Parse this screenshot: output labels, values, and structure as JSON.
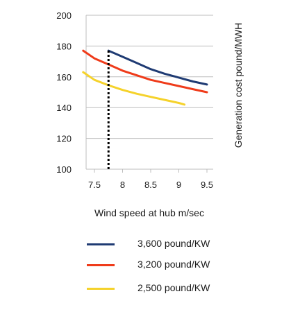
{
  "chart_data": {
    "type": "line",
    "title": "",
    "xlabel": "Wind speed at hub m/sec",
    "ylabel": "Generation cost pound/MWH",
    "xlim": [
      7.3,
      9.5
    ],
    "ylim": [
      100,
      200
    ],
    "xticks": [
      "7.5",
      "8",
      "8.5",
      "9",
      "9.5"
    ],
    "xtick_values": [
      7.5,
      8,
      8.5,
      9,
      9.5
    ],
    "yticks": [
      "100",
      "120",
      "140",
      "160",
      "180",
      "200"
    ],
    "ytick_values": [
      100,
      120,
      140,
      160,
      180,
      200
    ],
    "grid": "horizontal",
    "reference_line": {
      "x": 7.75,
      "style": "dotted",
      "color": "#000000"
    },
    "series": [
      {
        "name": "3,600 pound/KW",
        "color": "#1f3b73",
        "points": [
          [
            7.75,
            177
          ],
          [
            8,
            173
          ],
          [
            8.25,
            169
          ],
          [
            8.5,
            165
          ],
          [
            8.75,
            162
          ],
          [
            9,
            159.5
          ],
          [
            9.25,
            157
          ],
          [
            9.5,
            155
          ]
        ]
      },
      {
        "name": "3,200 pound/KW",
        "color": "#ef3b1a",
        "points": [
          [
            7.3,
            177
          ],
          [
            7.5,
            172
          ],
          [
            7.75,
            168
          ],
          [
            8,
            164
          ],
          [
            8.25,
            161
          ],
          [
            8.5,
            158
          ],
          [
            8.75,
            156
          ],
          [
            9,
            154
          ],
          [
            9.25,
            152
          ],
          [
            9.5,
            150
          ]
        ]
      },
      {
        "name": "2,500 pound/KW",
        "color": "#f5d22b",
        "points": [
          [
            7.3,
            163
          ],
          [
            7.5,
            158
          ],
          [
            7.75,
            154.5
          ],
          [
            8,
            151.5
          ],
          [
            8.25,
            149
          ],
          [
            8.5,
            147
          ],
          [
            8.75,
            145
          ],
          [
            9,
            143
          ],
          [
            9.1,
            142
          ]
        ]
      }
    ]
  },
  "legend": [
    {
      "label": "3,600 pound/KW",
      "color": "#1f3b73"
    },
    {
      "label": "3,200 pound/KW",
      "color": "#ef3b1a"
    },
    {
      "label": "2,500 pound/KW",
      "color": "#f5d22b"
    }
  ]
}
